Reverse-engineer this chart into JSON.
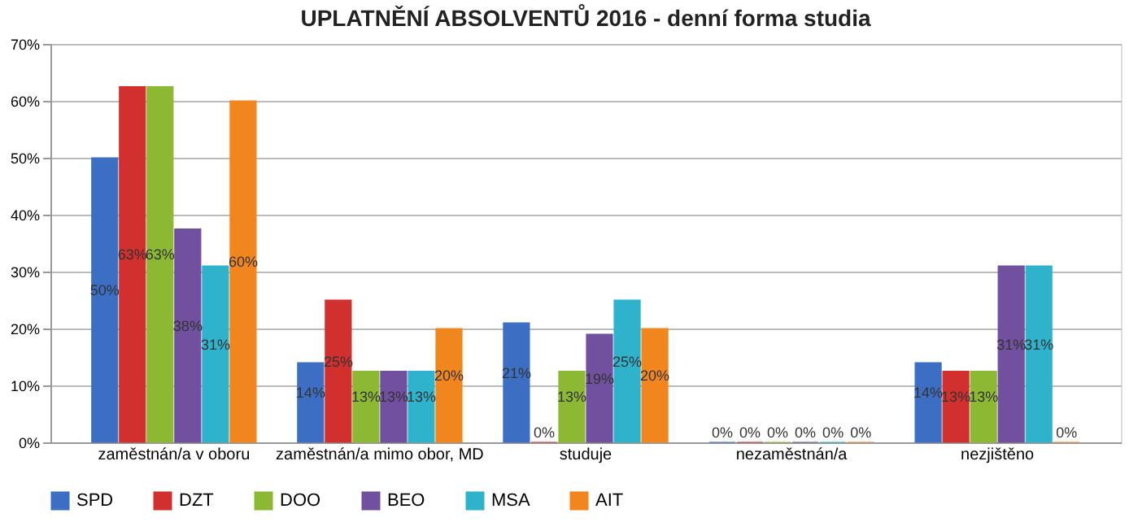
{
  "chart_data": {
    "type": "bar",
    "title": "UPLATNĚNÍ ABSOLVENTŮ 2016 - denní forma studia",
    "categories": [
      "zaměstnán/a v oboru",
      "zaměstnán/a mimo obor, MD",
      "studuje",
      "nezaměstnán/a",
      "nezjištěno"
    ],
    "series": [
      {
        "name": "SPD",
        "color": "#3c6fc4",
        "values": [
          50,
          14,
          21,
          0,
          14
        ],
        "value_labels": [
          "50%",
          "14%",
          "21%",
          "0%",
          "14%"
        ]
      },
      {
        "name": "DZT",
        "color": "#d1302e",
        "values": [
          62.5,
          25,
          0,
          0,
          12.5
        ],
        "value_labels": [
          "63%",
          "25%",
          "0%",
          "0%",
          "13%"
        ]
      },
      {
        "name": "DOO",
        "color": "#8db833",
        "values": [
          62.5,
          12.5,
          12.5,
          0,
          12.5
        ],
        "value_labels": [
          "63%",
          "13%",
          "13%",
          "0%",
          "13%"
        ]
      },
      {
        "name": "BEO",
        "color": "#7150a0",
        "values": [
          37.5,
          12.5,
          19,
          0,
          31
        ],
        "value_labels": [
          "38%",
          "13%",
          "19%",
          "0%",
          "31%"
        ]
      },
      {
        "name": "MSA",
        "color": "#2fb3cc",
        "values": [
          31,
          12.5,
          25,
          0,
          31
        ],
        "value_labels": [
          "31%",
          "13%",
          "25%",
          "0%",
          "31%"
        ]
      },
      {
        "name": "AIT",
        "color": "#f2861e",
        "values": [
          60,
          20,
          20,
          0,
          0
        ],
        "value_labels": [
          "60%",
          "20%",
          "20%",
          "0%",
          "0%"
        ]
      }
    ],
    "ylim": [
      0,
      70
    ],
    "yticks": [
      {
        "value": 0,
        "label": "0%"
      },
      {
        "value": 10,
        "label": "10%"
      },
      {
        "value": 20,
        "label": "20%"
      },
      {
        "value": 30,
        "label": "30%"
      },
      {
        "value": 40,
        "label": "40%"
      },
      {
        "value": 50,
        "label": "50%"
      },
      {
        "value": 60,
        "label": "60%"
      },
      {
        "value": 70,
        "label": "70%"
      }
    ],
    "grid": "y",
    "legend": "bottom"
  }
}
